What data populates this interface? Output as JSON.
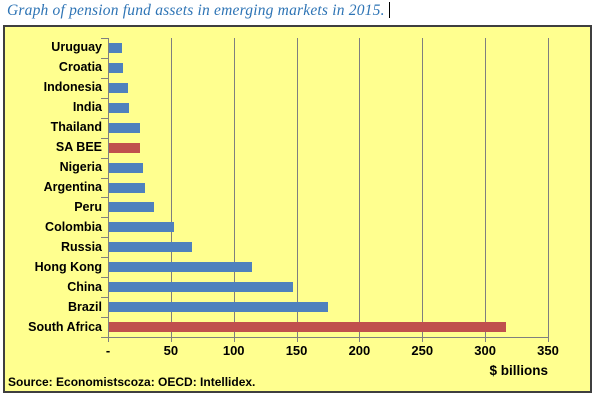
{
  "page": {
    "title_line": "Graph of pension fund assets in emerging markets in 2015."
  },
  "chart_data": {
    "type": "bar",
    "orientation": "horizontal",
    "title": "Graph of pension fund assets in emerging markets in 2015.",
    "xlabel": "$ billions",
    "source": "Source: Economistscoza: OECD: Intellidex.",
    "categories": [
      "Uruguay",
      "Croatia",
      "Indonesia",
      "India",
      "Thailand",
      "SA BEE",
      "Nigeria",
      "Argentina",
      "Peru",
      "Colombia",
      "Russia",
      "Hong Kong",
      "China",
      "Brazil",
      "South Africa"
    ],
    "values": [
      10,
      11,
      15,
      16,
      25,
      25,
      27,
      29,
      36,
      52,
      66,
      114,
      146,
      174,
      316
    ],
    "units": "USD billions",
    "highlighted_categories": [
      "SA BEE",
      "South Africa"
    ],
    "xlim": [
      0,
      350
    ],
    "x_tick_interval": 50,
    "x_tick_labels": [
      "-",
      "50",
      "100",
      "150",
      "200",
      "250",
      "300",
      "350"
    ],
    "grid": "vertical-major",
    "legend": "none",
    "colors": {
      "bar": "#4F81BD",
      "highlight": "#C0504D",
      "plot_background": "#FFFF8F",
      "gridline": "#7F7F7F",
      "axis": "#7F7F7F",
      "title_text": "#2E74B5",
      "chart_border": "#3F3F3F"
    }
  }
}
